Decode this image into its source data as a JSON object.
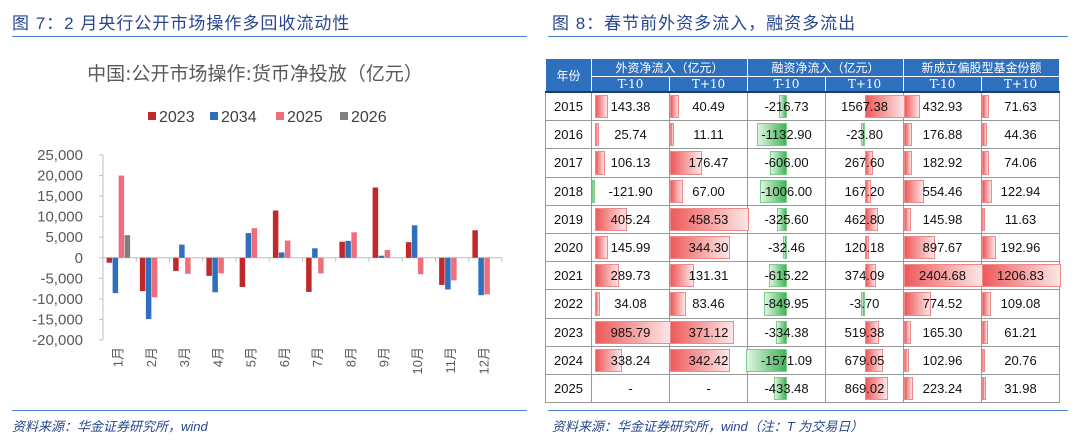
{
  "left": {
    "figure_title": "图 7：2 月央行公开市场操作多回收流动性",
    "source": "资料来源：华金证券研究所，wind"
  },
  "right": {
    "figure_title": "图 8：春节前外资多流入，融资多流出",
    "source": "资料来源：华金证券研究所，wind（注：T 为交易日）",
    "table": {
      "year_header": "年份",
      "groups": [
        "外资净流入（亿元）",
        "融资净流入（亿元）",
        "新成立偏股型基金份额"
      ],
      "subheaders": [
        "T-10",
        "T+10",
        "T-10",
        "T+10",
        "T-10",
        "T+10"
      ],
      "rows": [
        {
          "year": "2015",
          "values": [
            "143.38",
            "40.49",
            "-216.73",
            "1567.38",
            "432.93",
            "71.63"
          ]
        },
        {
          "year": "2016",
          "values": [
            "25.74",
            "11.11",
            "-1132.90",
            "-23.80",
            "176.88",
            "44.36"
          ]
        },
        {
          "year": "2017",
          "values": [
            "106.13",
            "176.47",
            "-606.00",
            "267.60",
            "182.92",
            "74.06"
          ]
        },
        {
          "year": "2018",
          "values": [
            "-121.90",
            "67.00",
            "-1006.00",
            "167.20",
            "554.46",
            "122.94"
          ]
        },
        {
          "year": "2019",
          "values": [
            "405.24",
            "458.53",
            "-325.60",
            "462.80",
            "145.98",
            "11.63"
          ]
        },
        {
          "year": "2020",
          "values": [
            "145.99",
            "344.30",
            "-32.46",
            "120.18",
            "897.67",
            "192.96"
          ]
        },
        {
          "year": "2021",
          "values": [
            "289.73",
            "131.31",
            "-615.22",
            "374.09",
            "2404.68",
            "1206.83"
          ]
        },
        {
          "year": "2022",
          "values": [
            "34.08",
            "83.46",
            "-849.95",
            "-3.70",
            "774.52",
            "109.08"
          ]
        },
        {
          "year": "2023",
          "values": [
            "985.79",
            "371.12",
            "-334.38",
            "519.38",
            "165.30",
            "61.21"
          ]
        },
        {
          "year": "2024",
          "values": [
            "338.24",
            "342.42",
            "-1571.09",
            "679.05",
            "102.96",
            "20.76"
          ]
        },
        {
          "year": "2025",
          "values": [
            "-",
            "-",
            "-433.48",
            "869.02",
            "223.24",
            "31.98"
          ]
        }
      ],
      "colors": {
        "header": "#2e6fbe",
        "positive_bar": "#ee5a5a",
        "negative_bar": "#3fb556"
      }
    }
  },
  "chart_data": {
    "type": "bar",
    "title": "中国:公开市场操作:货币净投放（亿元）",
    "categories": [
      "1月",
      "2月",
      "3月",
      "4月",
      "5月",
      "6月",
      "7月",
      "8月",
      "9月",
      "10月",
      "11月",
      "12月"
    ],
    "series": [
      {
        "name": "2023",
        "color": "#c0282a",
        "values": [
          -1200,
          -8100,
          -3200,
          -4400,
          -7100,
          11500,
          -8300,
          3900,
          17100,
          3800,
          -6600,
          6700
        ]
      },
      {
        "name": "2034",
        "color": "#2e6fbe",
        "values": [
          -8600,
          -14900,
          3200,
          -8400,
          6000,
          1300,
          2300,
          4100,
          500,
          7900,
          -7700,
          -9100
        ]
      },
      {
        "name": "2025",
        "color": "#ee6e7c",
        "values": [
          20000,
          -9600,
          -3900,
          -3800,
          7200,
          4200,
          -3800,
          6200,
          1900,
          -4000,
          -5500,
          -8900
        ]
      },
      {
        "name": "2026",
        "color": "#7f7f7f",
        "values": [
          5500,
          null,
          null,
          null,
          null,
          null,
          null,
          null,
          null,
          null,
          null,
          null
        ]
      }
    ],
    "ylim": [
      -20000,
      25000
    ],
    "yticks": [
      25000,
      20000,
      15000,
      10000,
      5000,
      0,
      -5000,
      -10000,
      -15000,
      -20000
    ],
    "ytick_labels": [
      "25,000",
      "20,000",
      "15,000",
      "10,000",
      "5,000",
      "0",
      "-5,000",
      "-10,000",
      "-15,000",
      "-20,000"
    ],
    "legend": "top",
    "grid": false
  }
}
